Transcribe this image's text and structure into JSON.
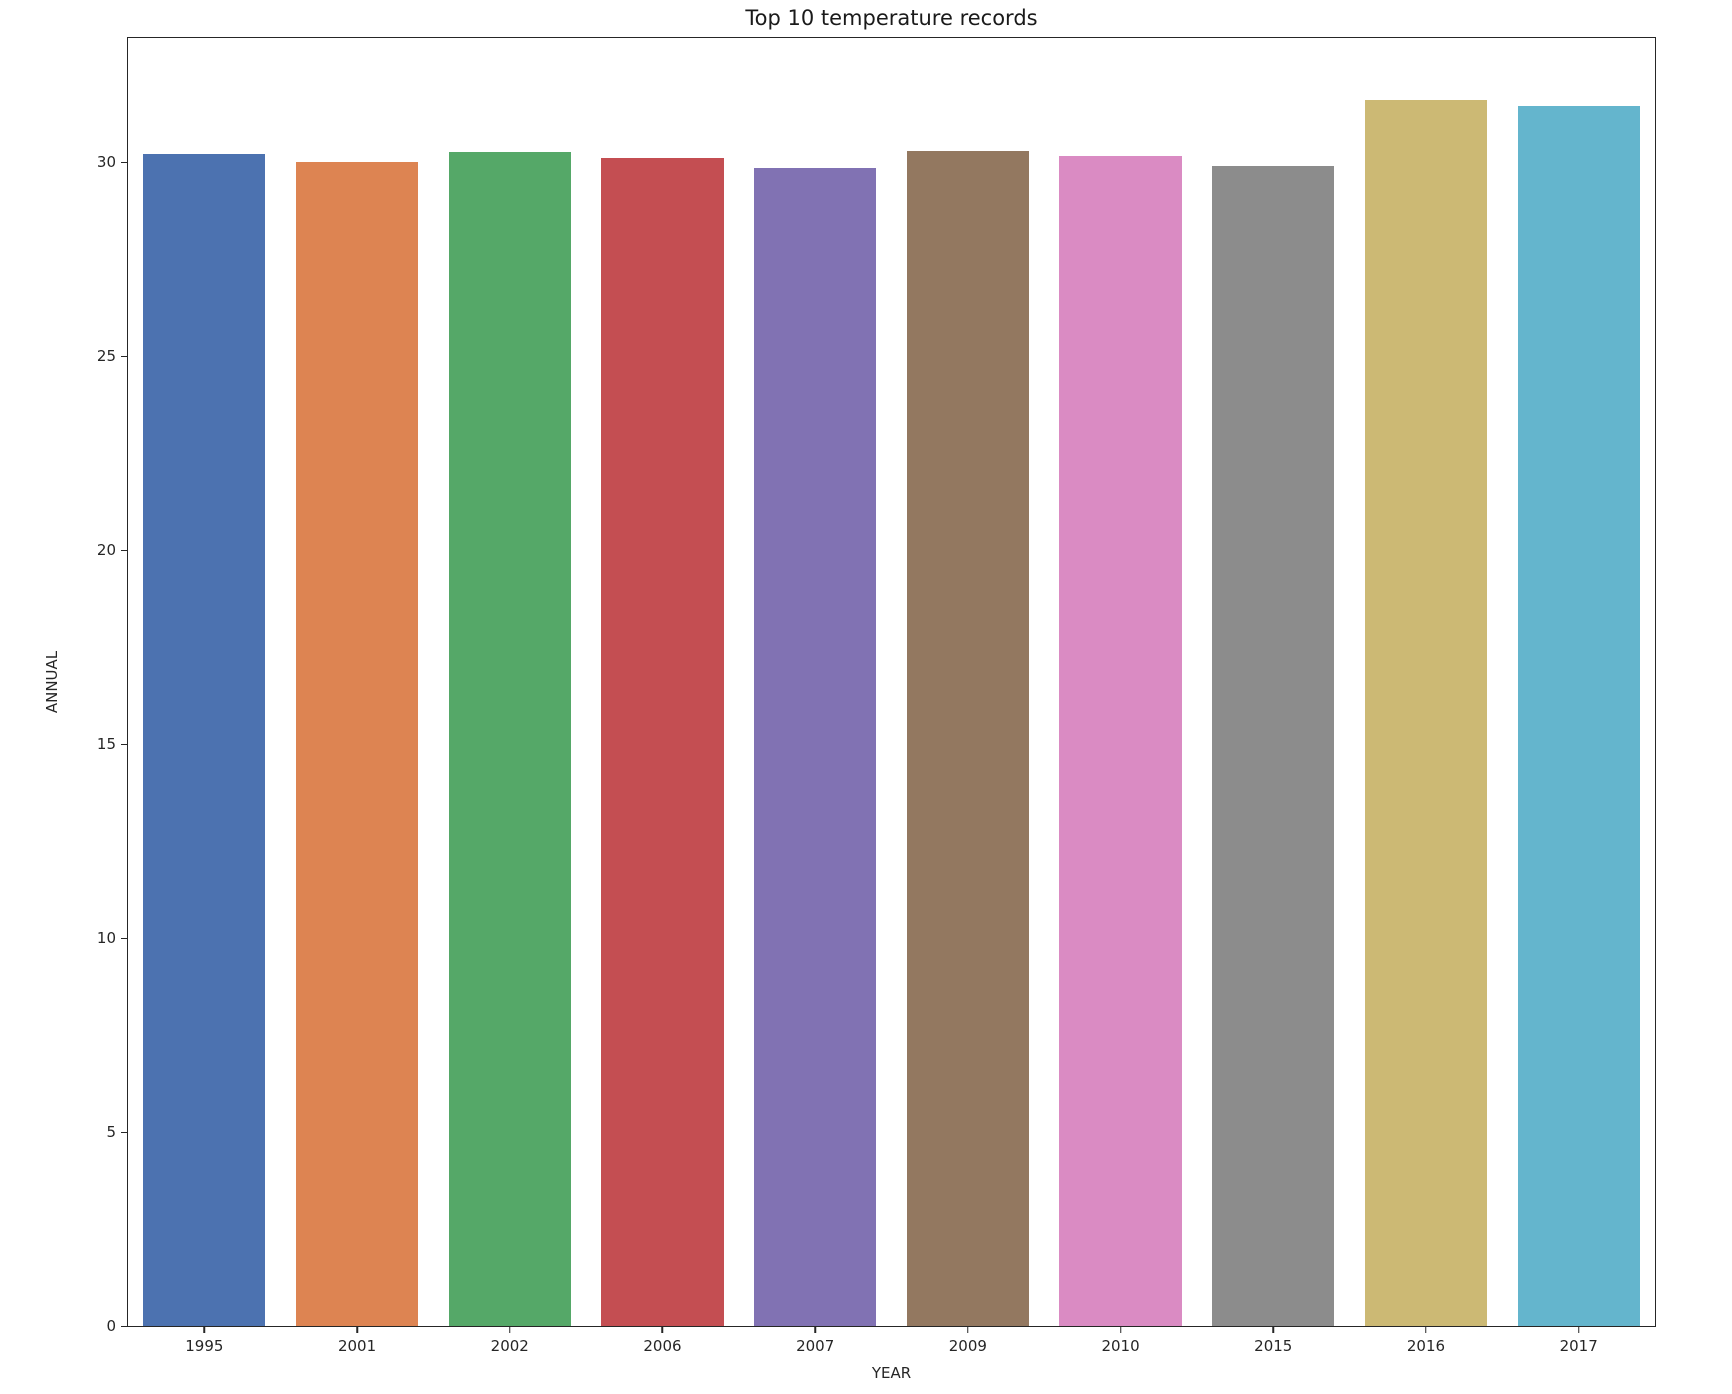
{
  "chart_data": {
    "type": "bar",
    "title": "Top 10 temperature records",
    "xlabel": "YEAR",
    "ylabel": "ANNUAL",
    "categories": [
      "1995",
      "2001",
      "2002",
      "2006",
      "2007",
      "2009",
      "2010",
      "2015",
      "2016",
      "2017"
    ],
    "values": [
      30.2,
      30.0,
      30.25,
      30.1,
      29.85,
      30.3,
      30.15,
      29.9,
      31.6,
      31.45
    ],
    "bar_colors": [
      "#4C72B0",
      "#DD8452",
      "#55A868",
      "#C44E52",
      "#8172B3",
      "#937860",
      "#DA8BC3",
      "#8C8C8C",
      "#CCB974",
      "#64B5CD"
    ],
    "ylim": [
      0,
      33.2
    ],
    "yticks": [
      0,
      5,
      10,
      15,
      20,
      25,
      30
    ],
    "grid": false,
    "legend": "none",
    "bar_width_fraction": 0.8,
    "axis_color": "#262626",
    "background_color": "#ffffff"
  }
}
